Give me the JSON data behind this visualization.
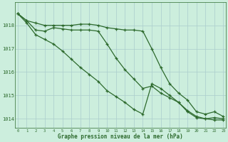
{
  "xlabel": "Graphe pression niveau de la mer (hPa)",
  "hours": [
    0,
    1,
    2,
    3,
    4,
    5,
    6,
    7,
    8,
    9,
    10,
    11,
    12,
    13,
    14,
    15,
    16,
    17,
    18,
    19,
    20,
    21,
    22,
    23
  ],
  "line1": [
    1018.5,
    1018.2,
    1018.1,
    1018.0,
    1018.0,
    1018.0,
    1018.0,
    1018.05,
    1018.05,
    1018.0,
    1017.9,
    1017.85,
    1017.8,
    1017.8,
    1017.75,
    1017.0,
    1016.2,
    1015.5,
    1015.1,
    1014.8,
    1014.3,
    1014.2,
    1014.3,
    1014.1
  ],
  "line2": [
    1018.5,
    1018.2,
    1017.8,
    1017.75,
    1017.9,
    1017.85,
    1017.8,
    1017.8,
    1017.8,
    1017.75,
    1017.2,
    1016.6,
    1016.1,
    1015.7,
    1015.3,
    1015.4,
    1015.1,
    1014.9,
    1014.7,
    1014.3,
    1014.05,
    1014.0,
    1014.05,
    1014.0
  ],
  "line3": [
    1018.5,
    1018.1,
    1017.6,
    1017.4,
    1017.2,
    1016.9,
    1016.55,
    1016.2,
    1015.9,
    1015.6,
    1015.2,
    1014.95,
    1014.7,
    1014.4,
    1014.2,
    1015.5,
    1015.3,
    1015.0,
    1014.7,
    1014.35,
    1014.1,
    1014.0,
    1013.95,
    1013.95
  ],
  "line_color": "#2d6a2d",
  "bg_color": "#cceedd",
  "grid_color": "#aacccc",
  "ylim_min": 1013.6,
  "ylim_max": 1019.0,
  "yticks": [
    1014,
    1015,
    1016,
    1017,
    1018
  ],
  "marker": "+"
}
